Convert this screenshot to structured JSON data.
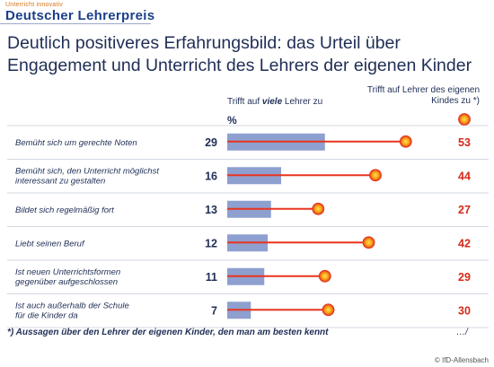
{
  "logo": {
    "subtitle": "Unterricht innovativ",
    "name": "Deutscher Lehrerpreis"
  },
  "title": "Deutlich positiveres Erfahrungsbild: das Urteil über Engagement und Unterricht des Lehrers der eigenen Kinder",
  "header_many": {
    "prefix": "Trifft auf ",
    "emphasis": "viele",
    "suffix": " Lehrer zu"
  },
  "header_own": "Trifft auf Lehrer des eigenen Kindes zu *)",
  "percent_label": "%",
  "footnote": "*) Aussagen über den Lehrer der eigenen Kinder, den man am besten kennt",
  "continuation": "…/",
  "source": "© IfD-Allensbach",
  "colors": {
    "text": "#1f2e55",
    "bar": "#8ea0cf",
    "dot_line": "#e8341f",
    "own_value": "#d62a1a"
  },
  "chart_data": {
    "type": "bar",
    "categories": [
      "Bemüht sich um gerechte Noten",
      "Bemüht sich, den Unterricht möglichst interessant zu gestalten",
      "Bildet sich regelmäßig fort",
      "Liebt seinen Beruf",
      "Ist neuen Unterrichtsformen gegenüber aufgeschlossen",
      "Ist auch außerhalb der Schule für die Kinder da"
    ],
    "category_lines": [
      [
        "Bemüht sich um gerechte Noten"
      ],
      [
        "Bemüht sich, den Unterricht möglichst",
        "interessant zu gestalten"
      ],
      [
        "Bildet sich regelmäßig fort"
      ],
      [
        "Liebt seinen Beruf"
      ],
      [
        "Ist neuen Unterrichtsformen",
        "gegenüber aufgeschlossen"
      ],
      [
        "Ist auch außerhalb der Schule",
        "für die Kinder da"
      ]
    ],
    "series": [
      {
        "name": "Trifft auf viele Lehrer zu",
        "values": [
          29,
          16,
          13,
          12,
          11,
          7
        ]
      },
      {
        "name": "Trifft auf Lehrer des eigenen Kindes zu *)",
        "values": [
          53,
          44,
          27,
          42,
          29,
          30
        ]
      }
    ],
    "unit": "%"
  }
}
